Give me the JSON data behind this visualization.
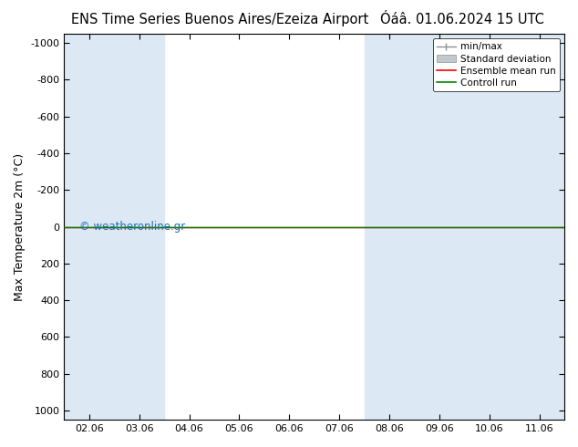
{
  "title": "ENS Time Series Buenos Aires/Ezeiza Airport",
  "date_label": "Óáâ. 01.06.2024 15 UTC",
  "ylabel": "Max Temperature 2m (°C)",
  "watermark": "© weatheronline.gr",
  "x_tick_labels": [
    "02.06",
    "03.06",
    "04.06",
    "05.06",
    "06.06",
    "07.06",
    "08.06",
    "09.06",
    "10.06",
    "11.06"
  ],
  "y_ticks": [
    -1000,
    -800,
    -600,
    -400,
    -200,
    0,
    200,
    400,
    600,
    800,
    1000
  ],
  "ylim": [
    1050,
    -1050
  ],
  "xlim": [
    -0.5,
    9.5
  ],
  "horizontal_line_y": 0,
  "shade_color": "#dce9f5",
  "background_color": "#ffffff",
  "line_color_ensemble": "#ff0000",
  "line_color_control": "#008000",
  "line_color_minmax": "#909090",
  "line_color_std": "#c0c8d0",
  "legend_labels": [
    "min/max",
    "Standard deviation",
    "Ensemble mean run",
    "Controll run"
  ],
  "title_fontsize": 10.5,
  "label_fontsize": 9,
  "tick_fontsize": 8,
  "watermark_color": "#1a6faf"
}
